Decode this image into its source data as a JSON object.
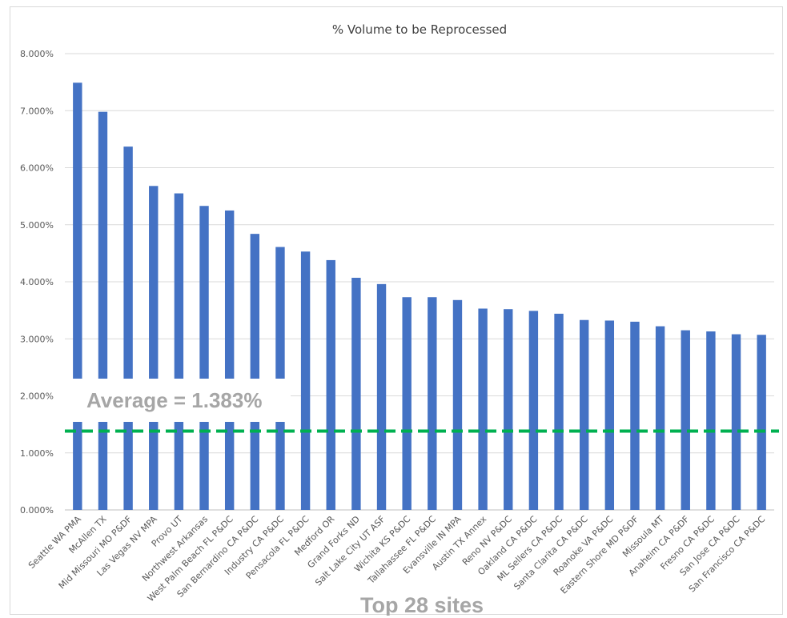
{
  "chart_data": {
    "type": "bar",
    "title": "% Volume to be Reprocessed",
    "xlabel": "Top 28 sites",
    "ylabel": "",
    "ylim": [
      0,
      0.08
    ],
    "yticks": [
      "0.000%",
      "1.000%",
      "2.000%",
      "3.000%",
      "4.000%",
      "5.000%",
      "6.000%",
      "7.000%",
      "8.000%"
    ],
    "grid": true,
    "bar_color": "#4472c4",
    "categories": [
      "Seattle WA PMA",
      "McAllen TX",
      "Mid Missouri MO P&DF",
      "Las Vegas NV MPA",
      "Provo UT",
      "Northwest Arkansas",
      "West Palm Beach FL P&DC",
      "San Bernardino CA P&DC",
      "Industry CA P&DC",
      "Pensacola FL P&DC",
      "Medford OR",
      "Grand Forks ND",
      "Salt Lake City UT ASF",
      "Wichita KS P&DC",
      "Tallahassee FL P&DC",
      "Evansville IN MPA",
      "Austin TX Annex",
      "Reno NV P&DC",
      "Oakland CA P&DC",
      "ML Sellers CA P&DC",
      "Santa Clarita CA P&DC",
      "Roanoke VA P&DC",
      "Eastern Shore MD P&DF",
      "Missoula MT",
      "Anaheim CA P&DF",
      "Fresno CA P&DC",
      "San Jose CA P&DC",
      "San Francisco CA P&DC"
    ],
    "values": [
      0.0749,
      0.0698,
      0.0637,
      0.0568,
      0.0555,
      0.0533,
      0.0525,
      0.0484,
      0.0461,
      0.0453,
      0.0438,
      0.0407,
      0.0396,
      0.0373,
      0.0373,
      0.0368,
      0.0353,
      0.0352,
      0.0349,
      0.0344,
      0.0333,
      0.0332,
      0.033,
      0.0322,
      0.0315,
      0.0313,
      0.0308,
      0.0307
    ],
    "average": {
      "label": "Average = 1.383%",
      "value": 0.01383,
      "color": "#00b050"
    }
  }
}
